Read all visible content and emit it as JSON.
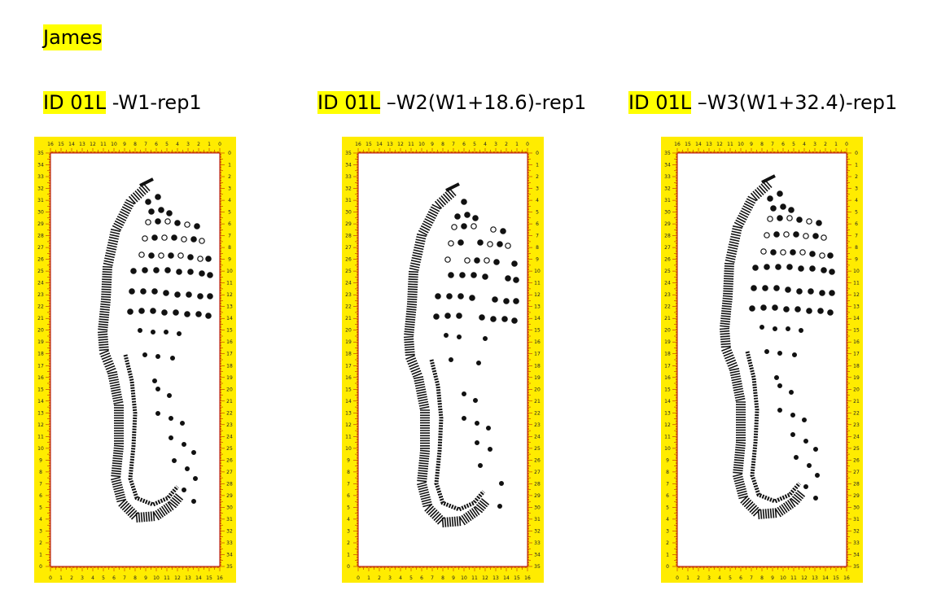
{
  "document": {
    "author_label": "James",
    "captions": [
      {
        "id_label": "ID 01L",
        "suffix": " -W1-rep1"
      },
      {
        "id_label": "ID 01L",
        "suffix": " –W2(W1+18.6)-rep1"
      },
      {
        "id_label": "ID 01L",
        "suffix": " –W3(W1+32.4)-rep1"
      }
    ],
    "scan_panels": [
      {
        "name": "shoeprint-scan-w1"
      },
      {
        "name": "shoeprint-scan-w2"
      },
      {
        "name": "shoeprint-scan-w3"
      }
    ],
    "ruler": {
      "horizontal_ticks": [
        "0",
        "1",
        "2",
        "3",
        "4",
        "5",
        "6",
        "7",
        "8",
        "9",
        "10",
        "11",
        "12",
        "13",
        "14",
        "15",
        "16"
      ],
      "vertical_ticks": [
        "0",
        "1",
        "2",
        "3",
        "4",
        "5",
        "6",
        "7",
        "8",
        "9",
        "10",
        "11",
        "12",
        "13",
        "14",
        "15",
        "16",
        "17",
        "18",
        "19",
        "20",
        "21",
        "22",
        "23",
        "24",
        "25",
        "26",
        "27",
        "28",
        "29",
        "30",
        "31",
        "32",
        "33",
        "34",
        "35"
      ]
    },
    "colors": {
      "highlight": "#ffff00",
      "ruler_fill": "#ffec00",
      "ruler_ink": "#b00000",
      "print_ink": "#111111"
    }
  }
}
